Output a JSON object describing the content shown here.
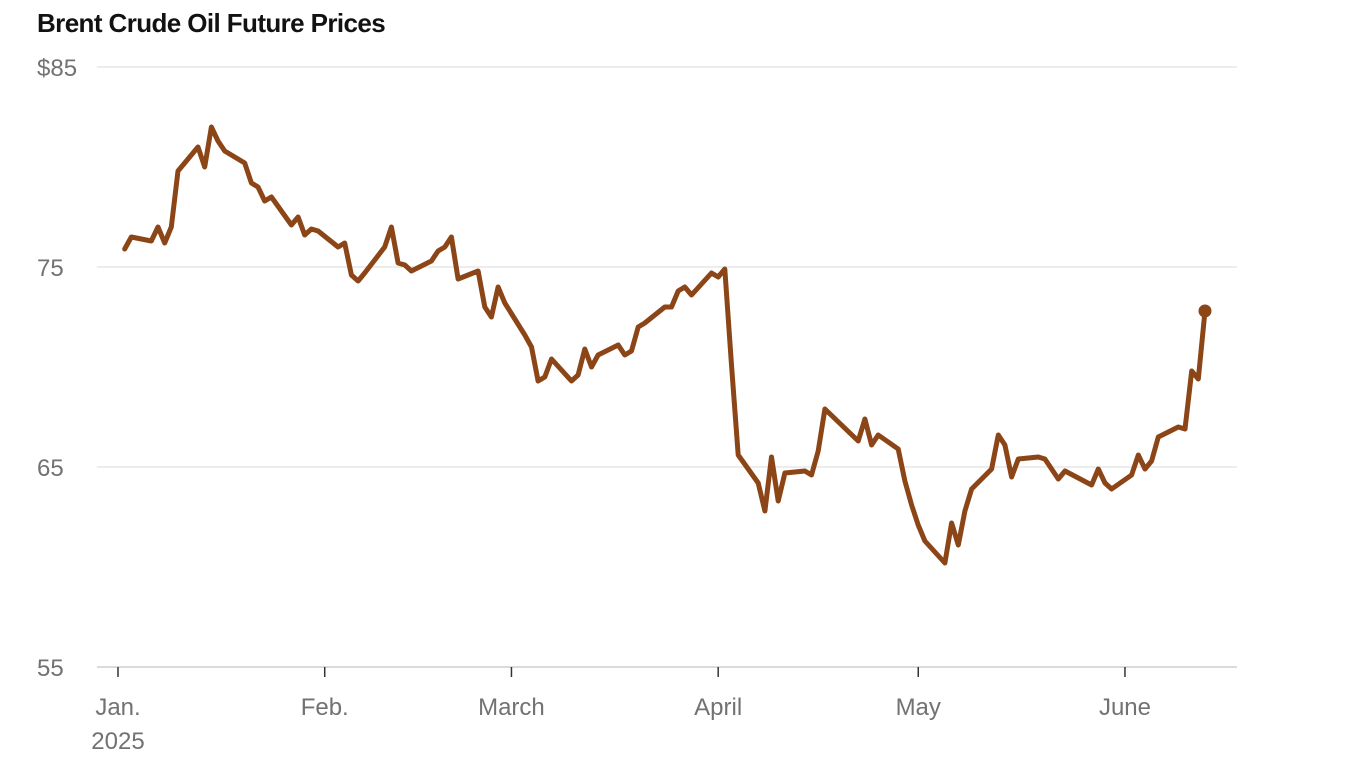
{
  "chart_data": {
    "type": "line",
    "title": "Brent Crude Oil Future Prices",
    "xlabel": "",
    "ylabel": "",
    "ylim": [
      55,
      85
    ],
    "xlim": [
      "2025-01-01",
      "2025-06-16"
    ],
    "grid": true,
    "legend": "none",
    "y_ticks": [
      {
        "value": 85,
        "label": "$85"
      },
      {
        "value": 75,
        "label": "75"
      },
      {
        "value": 65,
        "label": "65"
      },
      {
        "value": 55,
        "label": "55"
      }
    ],
    "x_ticks": [
      {
        "date": "2025-01-01",
        "label": "Jan.",
        "sublabel": "2025"
      },
      {
        "date": "2025-02-01",
        "label": "Feb.",
        "sublabel": ""
      },
      {
        "date": "2025-03-01",
        "label": "March",
        "sublabel": ""
      },
      {
        "date": "2025-04-01",
        "label": "April",
        "sublabel": ""
      },
      {
        "date": "2025-05-01",
        "label": "May",
        "sublabel": ""
      },
      {
        "date": "2025-06-01",
        "label": "June",
        "sublabel": ""
      }
    ],
    "series": [
      {
        "color": "#8b4516",
        "end_marker": true,
        "points": [
          [
            "2025-01-02",
            75.9
          ],
          [
            "2025-01-03",
            76.5
          ],
          [
            "2025-01-06",
            76.3
          ],
          [
            "2025-01-07",
            77.0
          ],
          [
            "2025-01-08",
            76.2
          ],
          [
            "2025-01-09",
            77.0
          ],
          [
            "2025-01-10",
            79.8
          ],
          [
            "2025-01-13",
            81.0
          ],
          [
            "2025-01-14",
            80.0
          ],
          [
            "2025-01-15",
            82.0
          ],
          [
            "2025-01-16",
            81.3
          ],
          [
            "2025-01-17",
            80.8
          ],
          [
            "2025-01-20",
            80.2
          ],
          [
            "2025-01-21",
            79.2
          ],
          [
            "2025-01-22",
            79.0
          ],
          [
            "2025-01-23",
            78.3
          ],
          [
            "2025-01-24",
            78.5
          ],
          [
            "2025-01-27",
            77.1
          ],
          [
            "2025-01-28",
            77.5
          ],
          [
            "2025-01-29",
            76.6
          ],
          [
            "2025-01-30",
            76.9
          ],
          [
            "2025-01-31",
            76.8
          ],
          [
            "2025-02-03",
            76.0
          ],
          [
            "2025-02-04",
            76.2
          ],
          [
            "2025-02-05",
            74.6
          ],
          [
            "2025-02-06",
            74.3
          ],
          [
            "2025-02-07",
            74.7
          ],
          [
            "2025-02-10",
            76.0
          ],
          [
            "2025-02-11",
            77.0
          ],
          [
            "2025-02-12",
            75.2
          ],
          [
            "2025-02-13",
            75.1
          ],
          [
            "2025-02-14",
            74.8
          ],
          [
            "2025-02-17",
            75.3
          ],
          [
            "2025-02-18",
            75.8
          ],
          [
            "2025-02-19",
            76.0
          ],
          [
            "2025-02-20",
            76.5
          ],
          [
            "2025-02-21",
            74.4
          ],
          [
            "2025-02-24",
            74.8
          ],
          [
            "2025-02-25",
            73.0
          ],
          [
            "2025-02-26",
            72.5
          ],
          [
            "2025-02-27",
            74.0
          ],
          [
            "2025-02-28",
            73.2
          ],
          [
            "2025-03-03",
            71.6
          ],
          [
            "2025-03-04",
            71.0
          ],
          [
            "2025-03-05",
            69.3
          ],
          [
            "2025-03-06",
            69.5
          ],
          [
            "2025-03-07",
            70.4
          ],
          [
            "2025-03-10",
            69.3
          ],
          [
            "2025-03-11",
            69.6
          ],
          [
            "2025-03-12",
            70.9
          ],
          [
            "2025-03-13",
            70.0
          ],
          [
            "2025-03-14",
            70.6
          ],
          [
            "2025-03-17",
            71.1
          ],
          [
            "2025-03-18",
            70.6
          ],
          [
            "2025-03-19",
            70.8
          ],
          [
            "2025-03-20",
            72.0
          ],
          [
            "2025-03-21",
            72.2
          ],
          [
            "2025-03-24",
            73.0
          ],
          [
            "2025-03-25",
            73.0
          ],
          [
            "2025-03-26",
            73.8
          ],
          [
            "2025-03-27",
            74.0
          ],
          [
            "2025-03-28",
            73.6
          ],
          [
            "2025-03-31",
            74.7
          ],
          [
            "2025-04-01",
            74.5
          ],
          [
            "2025-04-02",
            74.9
          ],
          [
            "2025-04-03",
            70.1
          ],
          [
            "2025-04-04",
            65.6
          ],
          [
            "2025-04-07",
            64.2
          ],
          [
            "2025-04-08",
            62.8
          ],
          [
            "2025-04-09",
            65.5
          ],
          [
            "2025-04-10",
            63.3
          ],
          [
            "2025-04-11",
            64.7
          ],
          [
            "2025-04-14",
            64.8
          ],
          [
            "2025-04-15",
            64.6
          ],
          [
            "2025-04-16",
            65.8
          ],
          [
            "2025-04-17",
            67.9
          ],
          [
            "2025-04-22",
            66.3
          ],
          [
            "2025-04-23",
            67.4
          ],
          [
            "2025-04-24",
            66.1
          ],
          [
            "2025-04-25",
            66.6
          ],
          [
            "2025-04-28",
            65.9
          ],
          [
            "2025-04-29",
            64.3
          ],
          [
            "2025-04-30",
            63.1
          ],
          [
            "2025-05-01",
            62.1
          ],
          [
            "2025-05-02",
            61.3
          ],
          [
            "2025-05-05",
            60.2
          ],
          [
            "2025-05-06",
            62.2
          ],
          [
            "2025-05-07",
            61.1
          ],
          [
            "2025-05-08",
            62.8
          ],
          [
            "2025-05-09",
            63.9
          ],
          [
            "2025-05-12",
            64.9
          ],
          [
            "2025-05-13",
            66.6
          ],
          [
            "2025-05-14",
            66.1
          ],
          [
            "2025-05-15",
            64.5
          ],
          [
            "2025-05-16",
            65.4
          ],
          [
            "2025-05-19",
            65.5
          ],
          [
            "2025-05-20",
            65.4
          ],
          [
            "2025-05-21",
            64.9
          ],
          [
            "2025-05-22",
            64.4
          ],
          [
            "2025-05-23",
            64.8
          ],
          [
            "2025-05-27",
            64.1
          ],
          [
            "2025-05-28",
            64.9
          ],
          [
            "2025-05-29",
            64.2
          ],
          [
            "2025-05-30",
            63.9
          ],
          [
            "2025-06-02",
            64.6
          ],
          [
            "2025-06-03",
            65.6
          ],
          [
            "2025-06-04",
            64.9
          ],
          [
            "2025-06-05",
            65.3
          ],
          [
            "2025-06-06",
            66.5
          ],
          [
            "2025-06-09",
            67.0
          ],
          [
            "2025-06-10",
            66.9
          ],
          [
            "2025-06-11",
            69.8
          ],
          [
            "2025-06-12",
            69.4
          ],
          [
            "2025-06-13",
            72.8
          ]
        ]
      }
    ]
  }
}
